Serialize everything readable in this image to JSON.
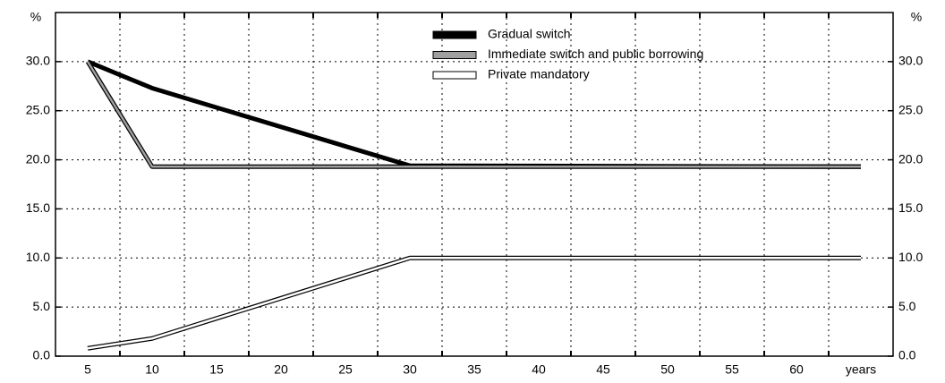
{
  "chart_data": {
    "type": "line",
    "y_label": "%",
    "y2_label": "%",
    "x": [
      5,
      10,
      30,
      65
    ],
    "series": [
      {
        "name": "Gradual switch",
        "color": "#000000",
        "values": [
          30,
          27.3,
          19.4,
          19.3
        ]
      },
      {
        "name": "Immediate switch and public borrowing",
        "color": "#a0a0a0",
        "values": [
          30,
          19.3,
          19.3,
          19.3
        ]
      },
      {
        "name": "Private mandatory",
        "color": "#ffffff",
        "values": [
          0.8,
          1.8,
          10,
          10
        ]
      }
    ],
    "xlim": [
      2.5,
      67.5
    ],
    "xticks": [
      5,
      10,
      15,
      20,
      25,
      30,
      35,
      40,
      45,
      50,
      55,
      60,
      {
        "value": 65,
        "label": "years"
      }
    ],
    "ylim": [
      0,
      35
    ],
    "yticks": [
      {
        "value": 0,
        "label": "0.0"
      },
      {
        "value": 5,
        "label": "5.0"
      },
      {
        "value": 10,
        "label": "10.0"
      },
      {
        "value": 15,
        "label": "15.0"
      },
      {
        "value": 20,
        "label": "20.0"
      },
      {
        "value": 25,
        "label": "25.0"
      },
      {
        "value": 30,
        "label": "30.0"
      }
    ],
    "y2lim": [
      0,
      35
    ],
    "y2ticks": [
      {
        "value": 0,
        "label": "0.0"
      },
      {
        "value": 5,
        "label": "5.0"
      },
      {
        "value": 10,
        "label": "10.0"
      },
      {
        "value": 15,
        "label": "15.0"
      },
      {
        "value": 20,
        "label": "20.0"
      },
      {
        "value": 25,
        "label": "25.0"
      },
      {
        "value": 30,
        "label": "30.0"
      }
    ],
    "grid": true,
    "legend": "top"
  }
}
